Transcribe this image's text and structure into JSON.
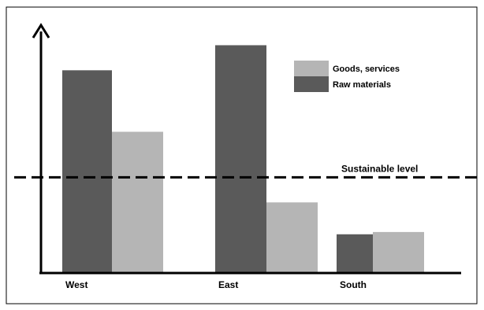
{
  "chart_data": {
    "type": "bar",
    "title": "",
    "xlabel": "",
    "ylabel": "",
    "categories": [
      "West",
      "East",
      "South"
    ],
    "series": [
      {
        "name": "Raw materials",
        "color": "#5a5a5a",
        "values": [
          89,
          100,
          17
        ]
      },
      {
        "name": "Goods, services",
        "color": "#b5b5b5",
        "values": [
          62,
          31,
          18
        ]
      }
    ],
    "reference_line": {
      "label": "Sustainable level",
      "value": 42,
      "style": "dashed"
    },
    "ylim": [
      0,
      105
    ],
    "axis_ticks": false,
    "grid": false,
    "legend_position": "top-right",
    "legend_order": [
      "Goods, services",
      "Raw materials"
    ],
    "colors": {
      "frame": "#000000",
      "axis": "#000000",
      "background": "#ffffff"
    }
  }
}
